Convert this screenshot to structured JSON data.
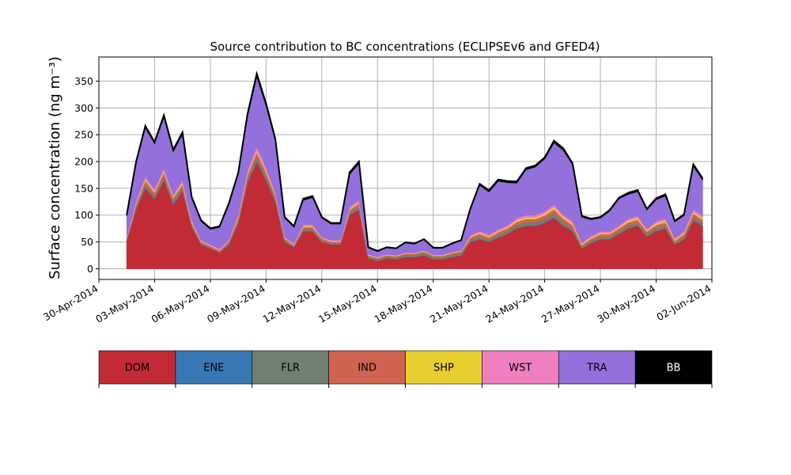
{
  "chart_data": {
    "type": "area",
    "stacked": true,
    "title": "Source contribution to BC concentrations (ECLIPSEv6 and GFED4)",
    "ylabel": "Surface concentration (ng m⁻³)",
    "xlabel": "",
    "xlim": [
      "2014-04-30",
      "2014-06-02"
    ],
    "ylim": [
      -20,
      395
    ],
    "yticks": [
      0,
      50,
      100,
      150,
      200,
      250,
      300,
      350
    ],
    "xticks": [
      "2014-04-30",
      "2014-05-03",
      "2014-05-06",
      "2014-05-09",
      "2014-05-12",
      "2014-05-15",
      "2014-05-18",
      "2014-05-21",
      "2014-05-24",
      "2014-05-27",
      "2014-05-30",
      "2014-06-02"
    ],
    "xtick_labels": [
      "30-Apr-2014",
      "03-May-2014",
      "06-May-2014",
      "09-May-2014",
      "12-May-2014",
      "15-May-2014",
      "18-May-2014",
      "21-May-2014",
      "24-May-2014",
      "27-May-2014",
      "30-May-2014",
      "02-Jun-2014"
    ],
    "grid": true,
    "x": [
      "2014-05-01T12:00",
      "2014-05-02T00:00",
      "2014-05-02T12:00",
      "2014-05-03T00:00",
      "2014-05-03T12:00",
      "2014-05-04T00:00",
      "2014-05-04T12:00",
      "2014-05-05T00:00",
      "2014-05-05T12:00",
      "2014-05-06T00:00",
      "2014-05-06T12:00",
      "2014-05-07T00:00",
      "2014-05-07T12:00",
      "2014-05-08T00:00",
      "2014-05-08T12:00",
      "2014-05-09T00:00",
      "2014-05-09T12:00",
      "2014-05-10T00:00",
      "2014-05-10T12:00",
      "2014-05-11T00:00",
      "2014-05-11T12:00",
      "2014-05-12T00:00",
      "2014-05-12T12:00",
      "2014-05-13T00:00",
      "2014-05-13T12:00",
      "2014-05-14T00:00",
      "2014-05-14T12:00",
      "2014-05-15T00:00",
      "2014-05-15T12:00",
      "2014-05-16T00:00",
      "2014-05-16T12:00",
      "2014-05-17T00:00",
      "2014-05-17T12:00",
      "2014-05-18T00:00",
      "2014-05-18T12:00",
      "2014-05-19T00:00",
      "2014-05-19T12:00",
      "2014-05-20T00:00",
      "2014-05-20T12:00",
      "2014-05-21T00:00",
      "2014-05-21T12:00",
      "2014-05-22T00:00",
      "2014-05-22T12:00",
      "2014-05-23T00:00",
      "2014-05-23T12:00",
      "2014-05-24T00:00",
      "2014-05-24T12:00",
      "2014-05-25T00:00",
      "2014-05-25T12:00",
      "2014-05-26T00:00",
      "2014-05-26T12:00",
      "2014-05-27T00:00",
      "2014-05-27T12:00",
      "2014-05-28T00:00",
      "2014-05-28T12:00",
      "2014-05-29T00:00",
      "2014-05-29T12:00",
      "2014-05-30T00:00",
      "2014-05-30T12:00",
      "2014-05-31T00:00",
      "2014-05-31T12:00",
      "2014-06-01T00:00",
      "2014-06-01T12:00"
    ],
    "series": [
      {
        "name": "DOM",
        "color": "#c22a35",
        "values": [
          52,
          110,
          150,
          130,
          165,
          120,
          145,
          78,
          45,
          38,
          30,
          45,
          85,
          160,
          200,
          165,
          125,
          50,
          40,
          70,
          70,
          50,
          45,
          45,
          100,
          110,
          20,
          15,
          20,
          18,
          22,
          22,
          25,
          18,
          18,
          22,
          25,
          50,
          55,
          50,
          58,
          65,
          75,
          80,
          80,
          85,
          95,
          80,
          70,
          38,
          48,
          55,
          55,
          65,
          75,
          80,
          60,
          70,
          75,
          45,
          55,
          90,
          80
        ]
      },
      {
        "name": "ENE",
        "color": "#3a78b5",
        "values": [
          0.6,
          1.1,
          1.5,
          1.3,
          1.6,
          1.2,
          1.4,
          0.8,
          0.5,
          0.4,
          0.3,
          0.5,
          0.8,
          1.6,
          2,
          1.6,
          1.2,
          0.5,
          0.4,
          0.7,
          0.7,
          0.5,
          0.5,
          0.5,
          1,
          1.1,
          0.2,
          0.2,
          0.2,
          0.2,
          0.2,
          0.2,
          0.3,
          0.2,
          0.2,
          0.2,
          0.3,
          0.5,
          0.5,
          0.5,
          0.6,
          0.6,
          0.8,
          0.8,
          0.8,
          0.8,
          1,
          0.8,
          0.7,
          0.4,
          0.5,
          0.6,
          0.6,
          0.6,
          0.8,
          0.8,
          0.6,
          0.7,
          0.8,
          0.4,
          0.5,
          0.9,
          0.8
        ]
      },
      {
        "name": "FLR",
        "color": "#6f8070",
        "values": [
          2,
          4,
          6,
          5,
          6,
          5,
          5,
          3,
          2,
          2,
          2,
          3,
          4,
          6,
          7,
          6,
          5,
          3,
          2,
          3,
          3,
          3,
          2,
          2,
          4,
          5,
          3,
          3,
          3,
          3,
          4,
          4,
          4,
          4,
          4,
          4,
          4,
          4,
          5,
          4,
          5,
          5,
          6,
          6,
          6,
          7,
          7,
          6,
          5,
          3,
          4,
          4,
          4,
          5,
          5,
          5,
          4,
          5,
          5,
          3,
          4,
          5,
          5
        ]
      },
      {
        "name": "IND",
        "color": "#cf6352",
        "values": [
          3,
          5,
          7,
          6,
          7,
          6,
          6,
          4,
          3,
          2,
          2,
          3,
          5,
          7,
          9,
          7,
          6,
          3,
          2,
          4,
          4,
          3,
          3,
          3,
          5,
          6,
          2,
          2,
          2,
          2,
          2,
          2,
          3,
          2,
          2,
          3,
          3,
          4,
          5,
          4,
          5,
          5,
          6,
          6,
          6,
          7,
          8,
          7,
          6,
          3,
          4,
          5,
          5,
          5,
          6,
          6,
          5,
          6,
          6,
          4,
          5,
          7,
          6
        ]
      },
      {
        "name": "SHP",
        "color": "#e8cf30",
        "values": [
          1,
          2,
          3,
          2,
          3,
          2,
          3,
          2,
          1,
          1,
          1,
          1,
          2,
          3,
          3,
          3,
          2,
          1,
          1,
          2,
          2,
          1,
          1,
          1,
          2,
          2,
          1,
          1,
          1,
          1,
          1,
          1,
          1,
          1,
          1,
          1,
          1,
          2,
          2,
          2,
          2,
          2,
          3,
          3,
          3,
          3,
          4,
          3,
          3,
          2,
          2,
          2,
          2,
          2,
          3,
          3,
          2,
          3,
          3,
          2,
          2,
          3,
          3
        ]
      },
      {
        "name": "WST",
        "color": "#f07fbf",
        "values": [
          2,
          4,
          5,
          4,
          5,
          4,
          5,
          3,
          2,
          2,
          2,
          2,
          4,
          6,
          7,
          6,
          4,
          2,
          2,
          3,
          3,
          2,
          2,
          2,
          4,
          4,
          1,
          1,
          1,
          1,
          1,
          1,
          1,
          1,
          1,
          1,
          1,
          2,
          3,
          3,
          3,
          3,
          4,
          4,
          4,
          4,
          5,
          4,
          4,
          2,
          3,
          3,
          3,
          3,
          4,
          4,
          3,
          4,
          4,
          3,
          3,
          5,
          4
        ]
      },
      {
        "name": "TRA",
        "color": "#9370db",
        "values": [
          38,
          70,
          90,
          85,
          95,
          80,
          85,
          40,
          35,
          28,
          40,
          65,
          75,
          100,
          130,
          115,
          95,
          35,
          30,
          45,
          50,
          35,
          30,
          30,
          60,
          68,
          12,
          10,
          12,
          12,
          18,
          16,
          20,
          12,
          12,
          15,
          18,
          48,
          85,
          80,
          90,
          80,
          65,
          85,
          90,
          98,
          115,
          120,
          105,
          48,
          30,
          25,
          38,
          50,
          45,
          45,
          35,
          40,
          42,
          30,
          30,
          80,
          67
        ]
      },
      {
        "name": "BB",
        "color": "#000000",
        "values": [
          2,
          3,
          4,
          3,
          4,
          4,
          4,
          3,
          2,
          2,
          2,
          3,
          3,
          5,
          6,
          5,
          4,
          2,
          2,
          3,
          3,
          2,
          2,
          2,
          4,
          4,
          1,
          1,
          1,
          1,
          1,
          1,
          1,
          1,
          1,
          1,
          1,
          2,
          3,
          3,
          3,
          3,
          3,
          3,
          3,
          3,
          4,
          4,
          3,
          2,
          2,
          2,
          2,
          2,
          3,
          3,
          2,
          3,
          3,
          2,
          2,
          4,
          3
        ]
      }
    ],
    "legend": {
      "placement": "bottom",
      "entries": [
        "DOM",
        "ENE",
        "FLR",
        "IND",
        "SHP",
        "WST",
        "TRA",
        "BB"
      ]
    }
  }
}
